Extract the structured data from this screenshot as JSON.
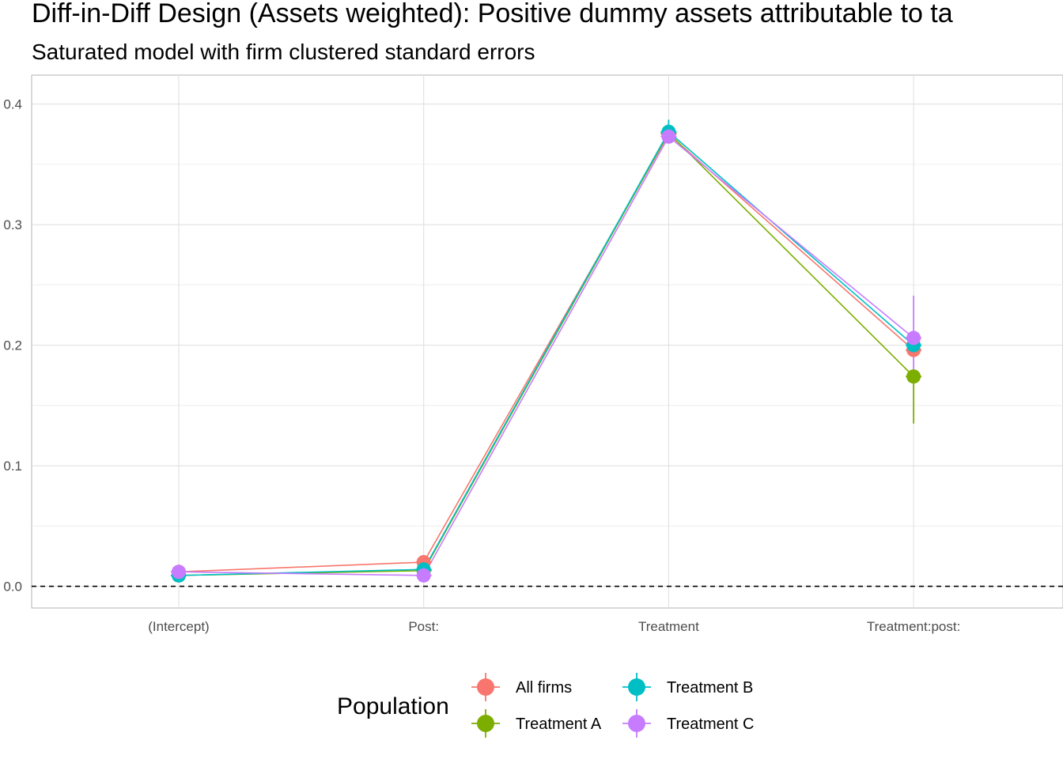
{
  "chart_data": {
    "type": "line",
    "title": "Diff-in-Diff Design (Assets weighted): Positive dummy assets attributable to ta",
    "subtitle": "Saturated model with firm clustered standard errors",
    "xlabel": "",
    "ylabel": "",
    "categories": [
      "(Intercept)",
      "Post:",
      "Treatment",
      "Treatment:post:"
    ],
    "ylim": [
      -0.018,
      0.424
    ],
    "yticks": [
      0.0,
      0.1,
      0.2,
      0.3,
      0.4
    ],
    "ytick_labels": [
      "0.0",
      "0.1",
      "0.2",
      "0.3",
      "0.4"
    ],
    "reference_line": {
      "y": 0,
      "style": "dashed",
      "color": "#000000"
    },
    "grid": true,
    "legend": {
      "title": "Population",
      "position": "bottom"
    },
    "series": [
      {
        "name": "All firms",
        "color": "#F8766D",
        "values": [
          0.012,
          0.02,
          0.375,
          0.196
        ],
        "lower": [
          0.011,
          0.019,
          0.372,
          0.193
        ],
        "upper": [
          0.013,
          0.021,
          0.378,
          0.199
        ]
      },
      {
        "name": "Treatment A",
        "color": "#7CAE00",
        "values": [
          0.009,
          0.013,
          0.376,
          0.174
        ],
        "lower": [
          0.008,
          0.012,
          0.372,
          0.135
        ],
        "upper": [
          0.01,
          0.014,
          0.38,
          0.178
        ]
      },
      {
        "name": "Treatment B",
        "color": "#00BFC4",
        "values": [
          0.009,
          0.014,
          0.377,
          0.2
        ],
        "lower": [
          0.008,
          0.013,
          0.371,
          0.197
        ],
        "upper": [
          0.01,
          0.015,
          0.387,
          0.203
        ]
      },
      {
        "name": "Treatment C",
        "color": "#C77CFF",
        "values": [
          0.012,
          0.009,
          0.373,
          0.206
        ],
        "lower": [
          0.011,
          0.008,
          0.369,
          0.175
        ],
        "upper": [
          0.013,
          0.01,
          0.377,
          0.241
        ]
      }
    ]
  }
}
